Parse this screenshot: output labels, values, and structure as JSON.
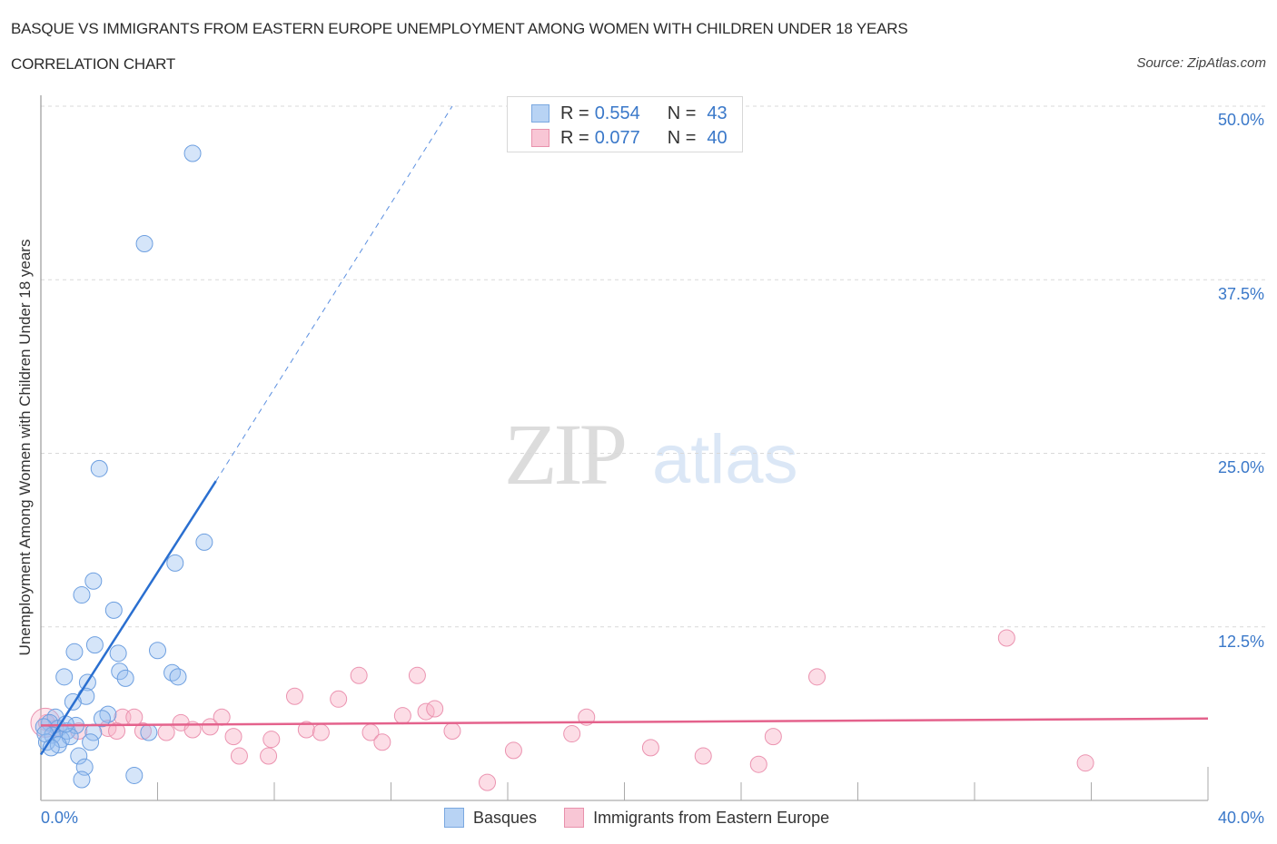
{
  "header": {
    "title": "BASQUE VS IMMIGRANTS FROM EASTERN EUROPE UNEMPLOYMENT AMONG WOMEN WITH CHILDREN UNDER 18 YEARS",
    "subtitle": "CORRELATION CHART",
    "source": "Source: ZipAtlas.com"
  },
  "watermark": {
    "zip": "ZIP",
    "atlas": "atlas"
  },
  "legend": {
    "basques": {
      "r_label": "R = ",
      "r_value": "0.554",
      "n_label": "N = ",
      "n_value": "43",
      "color": "#b8d3f4",
      "border": "#7aa8e0"
    },
    "immigrants": {
      "r_label": "R = ",
      "r_value": "0.077",
      "n_label": "N = ",
      "n_value": "40",
      "color": "#f8c6d5",
      "border": "#e891ac"
    }
  },
  "bottom_legend": {
    "basques": "Basques",
    "immigrants": "Immigrants from Eastern Europe"
  },
  "axes": {
    "ylabel": "Unemployment Among Women with Children Under 18 years",
    "yticks": [
      "50.0%",
      "37.5%",
      "25.0%",
      "12.5%"
    ],
    "xtick_left": "0.0%",
    "xtick_right": "40.0%"
  },
  "chart_data": {
    "type": "scatter",
    "title": "BASQUE VS IMMIGRANTS FROM EASTERN EUROPE UNEMPLOYMENT AMONG WOMEN WITH CHILDREN UNDER 18 YEARS",
    "subtitle": "CORRELATION CHART",
    "xlabel": "",
    "ylabel": "Unemployment Among Women with Children Under 18 years",
    "xlim": [
      0,
      40
    ],
    "ylim": [
      0,
      50
    ],
    "x_ticks": [
      "0.0%",
      "40.0%"
    ],
    "y_ticks": [
      "12.5%",
      "25.0%",
      "37.5%",
      "50.0%"
    ],
    "grid": "horizontal dashed",
    "legend_position": "top-center and bottom",
    "series": [
      {
        "name": "Basques",
        "color": "#6fa3e6",
        "R": 0.554,
        "N": 43,
        "trend": {
          "x": [
            0,
            6.0,
            14.1
          ],
          "y": [
            3.3,
            23.0,
            50.0
          ],
          "solid_until_x": 6.0
        },
        "points": [
          [
            5.2,
            46.6
          ],
          [
            3.55,
            40.1
          ],
          [
            2.0,
            23.9
          ],
          [
            5.6,
            18.6
          ],
          [
            4.6,
            17.1
          ],
          [
            1.8,
            15.8
          ],
          [
            1.4,
            14.8
          ],
          [
            2.5,
            13.7
          ],
          [
            1.15,
            10.7
          ],
          [
            4.0,
            10.8
          ],
          [
            2.65,
            10.6
          ],
          [
            1.85,
            11.2
          ],
          [
            0.8,
            8.9
          ],
          [
            2.7,
            9.3
          ],
          [
            2.9,
            8.8
          ],
          [
            4.5,
            9.2
          ],
          [
            4.7,
            8.9
          ],
          [
            1.6,
            8.5
          ],
          [
            1.55,
            7.5
          ],
          [
            1.1,
            7.1
          ],
          [
            2.3,
            6.2
          ],
          [
            2.1,
            5.9
          ],
          [
            0.5,
            6.0
          ],
          [
            0.3,
            5.6
          ],
          [
            0.1,
            5.3
          ],
          [
            0.6,
            5.2
          ],
          [
            0.9,
            5.0
          ],
          [
            1.2,
            5.4
          ],
          [
            0.4,
            4.7
          ],
          [
            0.7,
            4.4
          ],
          [
            1.0,
            4.6
          ],
          [
            1.8,
            4.9
          ],
          [
            0.2,
            4.2
          ],
          [
            0.6,
            4.0
          ],
          [
            1.7,
            4.2
          ],
          [
            3.7,
            4.9
          ],
          [
            1.3,
            3.2
          ],
          [
            1.5,
            2.4
          ],
          [
            1.4,
            1.5
          ],
          [
            3.2,
            1.8
          ],
          [
            0.15,
            4.8
          ],
          [
            0.85,
            5.5
          ],
          [
            0.35,
            3.8
          ]
        ]
      },
      {
        "name": "Immigrants from Eastern Europe",
        "color": "#f08fae",
        "R": 0.077,
        "N": 40,
        "trend": {
          "x": [
            0,
            40
          ],
          "y": [
            5.4,
            5.9
          ]
        },
        "points": [
          [
            0.2,
            5.6
          ],
          [
            0.5,
            5.2
          ],
          [
            1.3,
            5.0
          ],
          [
            2.3,
            5.2
          ],
          [
            2.8,
            6.0
          ],
          [
            2.6,
            5.0
          ],
          [
            3.5,
            5.0
          ],
          [
            3.2,
            6.0
          ],
          [
            4.3,
            4.9
          ],
          [
            4.8,
            5.6
          ],
          [
            5.2,
            5.1
          ],
          [
            5.8,
            5.3
          ],
          [
            6.2,
            6.0
          ],
          [
            6.6,
            4.6
          ],
          [
            6.8,
            3.2
          ],
          [
            7.8,
            3.2
          ],
          [
            7.9,
            4.4
          ],
          [
            8.7,
            7.5
          ],
          [
            9.1,
            5.1
          ],
          [
            9.6,
            4.9
          ],
          [
            10.2,
            7.3
          ],
          [
            10.9,
            9.0
          ],
          [
            11.3,
            4.9
          ],
          [
            11.7,
            4.2
          ],
          [
            12.4,
            6.1
          ],
          [
            12.9,
            9.0
          ],
          [
            13.2,
            6.4
          ],
          [
            13.5,
            6.6
          ],
          [
            14.1,
            5.0
          ],
          [
            15.3,
            1.3
          ],
          [
            16.2,
            3.6
          ],
          [
            18.2,
            4.8
          ],
          [
            18.7,
            6.0
          ],
          [
            20.9,
            3.8
          ],
          [
            22.7,
            3.2
          ],
          [
            24.6,
            2.6
          ],
          [
            25.1,
            4.6
          ],
          [
            26.6,
            8.9
          ],
          [
            33.1,
            11.7
          ],
          [
            35.8,
            2.7
          ]
        ]
      }
    ]
  }
}
